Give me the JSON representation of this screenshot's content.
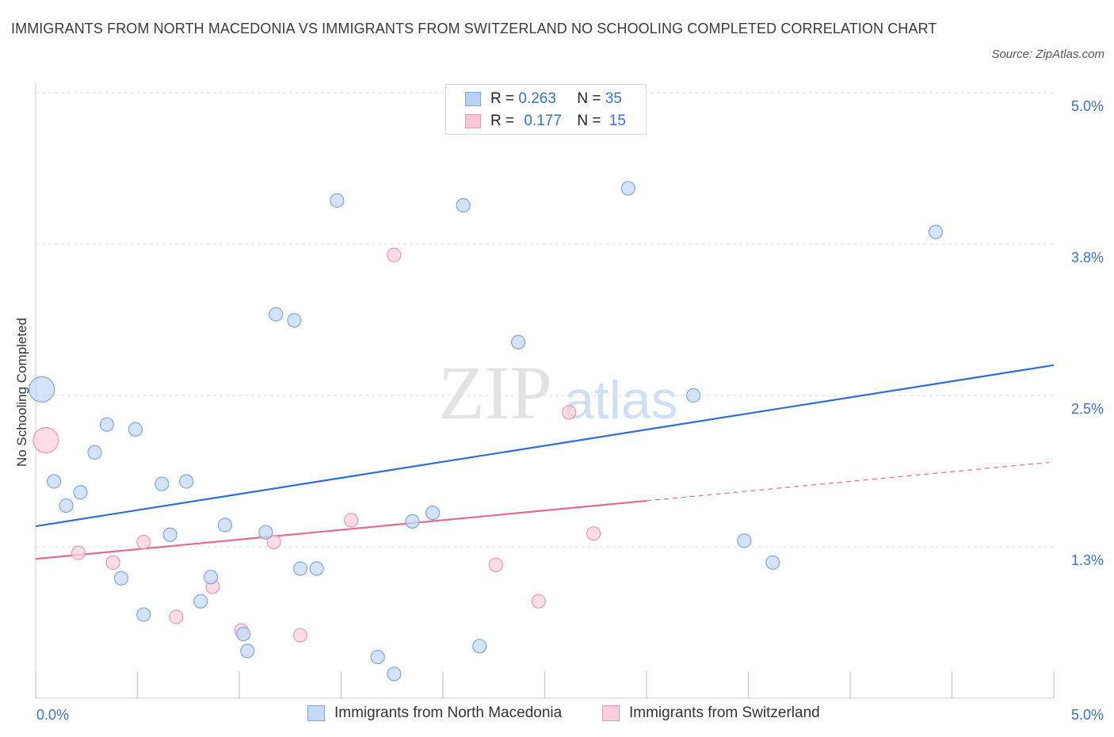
{
  "title": "IMMIGRANTS FROM NORTH MACEDONIA VS IMMIGRANTS FROM SWITZERLAND NO SCHOOLING COMPLETED CORRELATION CHART",
  "source": "Source: ZipAtlas.com",
  "watermark": {
    "zip": "ZIP",
    "atlas": "atlas"
  },
  "legend": {
    "r_label": "R =",
    "n_label": "N =",
    "rows": [
      {
        "r": "0.263",
        "n": "35",
        "color": "#b9d2f4",
        "border": "#7ea6e0"
      },
      {
        "r": "0.177",
        "n": "15",
        "color": "#f9c6d4",
        "border": "#e79ab2"
      }
    ]
  },
  "bottom_legend": [
    {
      "label": "Immigrants from North Macedonia",
      "color": "#c5daf7",
      "border": "#7ea6e0"
    },
    {
      "label": "Immigrants from Switzerland",
      "color": "#fbd0dc",
      "border": "#e79ab2"
    }
  ],
  "chart_data": {
    "type": "scatter",
    "title": "IMMIGRANTS FROM NORTH MACEDONIA VS IMMIGRANTS FROM SWITZERLAND NO SCHOOLING COMPLETED CORRELATION CHART",
    "xlabel": "",
    "ylabel": "No Schooling Completed",
    "xlim": [
      0,
      5.0
    ],
    "ylim": [
      0,
      5.0
    ],
    "x_tick_labels": [
      "0.0%",
      "5.0%"
    ],
    "y_ticks": [
      {
        "value": 1.25,
        "label": "1.3%"
      },
      {
        "value": 2.5,
        "label": "2.5%"
      },
      {
        "value": 3.75,
        "label": "3.8%"
      },
      {
        "value": 5.0,
        "label": "5.0%"
      }
    ],
    "grid": true,
    "legend_position": "top-center",
    "series": [
      {
        "name": "Immigrants from North Macedonia",
        "color": "#7ea6e0",
        "fill": "#c5daf7",
        "trend": {
          "x": [
            0,
            5.0
          ],
          "y": [
            1.42,
            2.75
          ],
          "color": "#2f6fd1",
          "dashed_from": null
        },
        "points": [
          {
            "x": 0.03,
            "y": 2.55,
            "size": "large"
          },
          {
            "x": 0.09,
            "y": 1.79
          },
          {
            "x": 0.15,
            "y": 1.59
          },
          {
            "x": 0.22,
            "y": 1.7
          },
          {
            "x": 0.29,
            "y": 2.03
          },
          {
            "x": 0.35,
            "y": 2.26
          },
          {
            "x": 0.42,
            "y": 0.99
          },
          {
            "x": 0.49,
            "y": 2.22
          },
          {
            "x": 0.53,
            "y": 0.69
          },
          {
            "x": 0.62,
            "y": 1.77
          },
          {
            "x": 0.66,
            "y": 1.35
          },
          {
            "x": 0.74,
            "y": 1.79
          },
          {
            "x": 0.81,
            "y": 0.8
          },
          {
            "x": 0.86,
            "y": 1.0
          },
          {
            "x": 0.93,
            "y": 1.43
          },
          {
            "x": 1.02,
            "y": 0.53
          },
          {
            "x": 1.04,
            "y": 0.39
          },
          {
            "x": 1.13,
            "y": 1.37
          },
          {
            "x": 1.18,
            "y": 3.17
          },
          {
            "x": 1.27,
            "y": 3.12
          },
          {
            "x": 1.3,
            "y": 1.07
          },
          {
            "x": 1.38,
            "y": 1.07
          },
          {
            "x": 1.48,
            "y": 4.11
          },
          {
            "x": 1.68,
            "y": 0.34
          },
          {
            "x": 1.76,
            "y": 0.2
          },
          {
            "x": 1.85,
            "y": 1.46
          },
          {
            "x": 1.95,
            "y": 1.53
          },
          {
            "x": 2.1,
            "y": 4.07
          },
          {
            "x": 2.18,
            "y": 0.43
          },
          {
            "x": 2.37,
            "y": 2.94
          },
          {
            "x": 2.91,
            "y": 4.21
          },
          {
            "x": 3.23,
            "y": 2.5
          },
          {
            "x": 3.48,
            "y": 1.3
          },
          {
            "x": 3.62,
            "y": 1.12
          },
          {
            "x": 4.42,
            "y": 3.85
          }
        ]
      },
      {
        "name": "Immigrants from Switzerland",
        "color": "#e79ab2",
        "fill": "#fbd0dc",
        "trend": {
          "x": [
            0,
            5.0
          ],
          "y": [
            1.15,
            1.95
          ],
          "color": "#e06b93",
          "solid_until": 3.0
        },
        "points": [
          {
            "x": 0.05,
            "y": 2.13,
            "size": "large"
          },
          {
            "x": 0.21,
            "y": 1.2
          },
          {
            "x": 0.38,
            "y": 1.12
          },
          {
            "x": 0.53,
            "y": 1.29
          },
          {
            "x": 0.69,
            "y": 0.67
          },
          {
            "x": 0.87,
            "y": 0.92
          },
          {
            "x": 1.01,
            "y": 0.56
          },
          {
            "x": 1.17,
            "y": 1.29
          },
          {
            "x": 1.3,
            "y": 0.52
          },
          {
            "x": 1.55,
            "y": 1.47
          },
          {
            "x": 1.76,
            "y": 3.66
          },
          {
            "x": 2.26,
            "y": 1.1
          },
          {
            "x": 2.47,
            "y": 0.8
          },
          {
            "x": 2.62,
            "y": 2.36
          },
          {
            "x": 2.74,
            "y": 1.36
          }
        ]
      }
    ]
  }
}
